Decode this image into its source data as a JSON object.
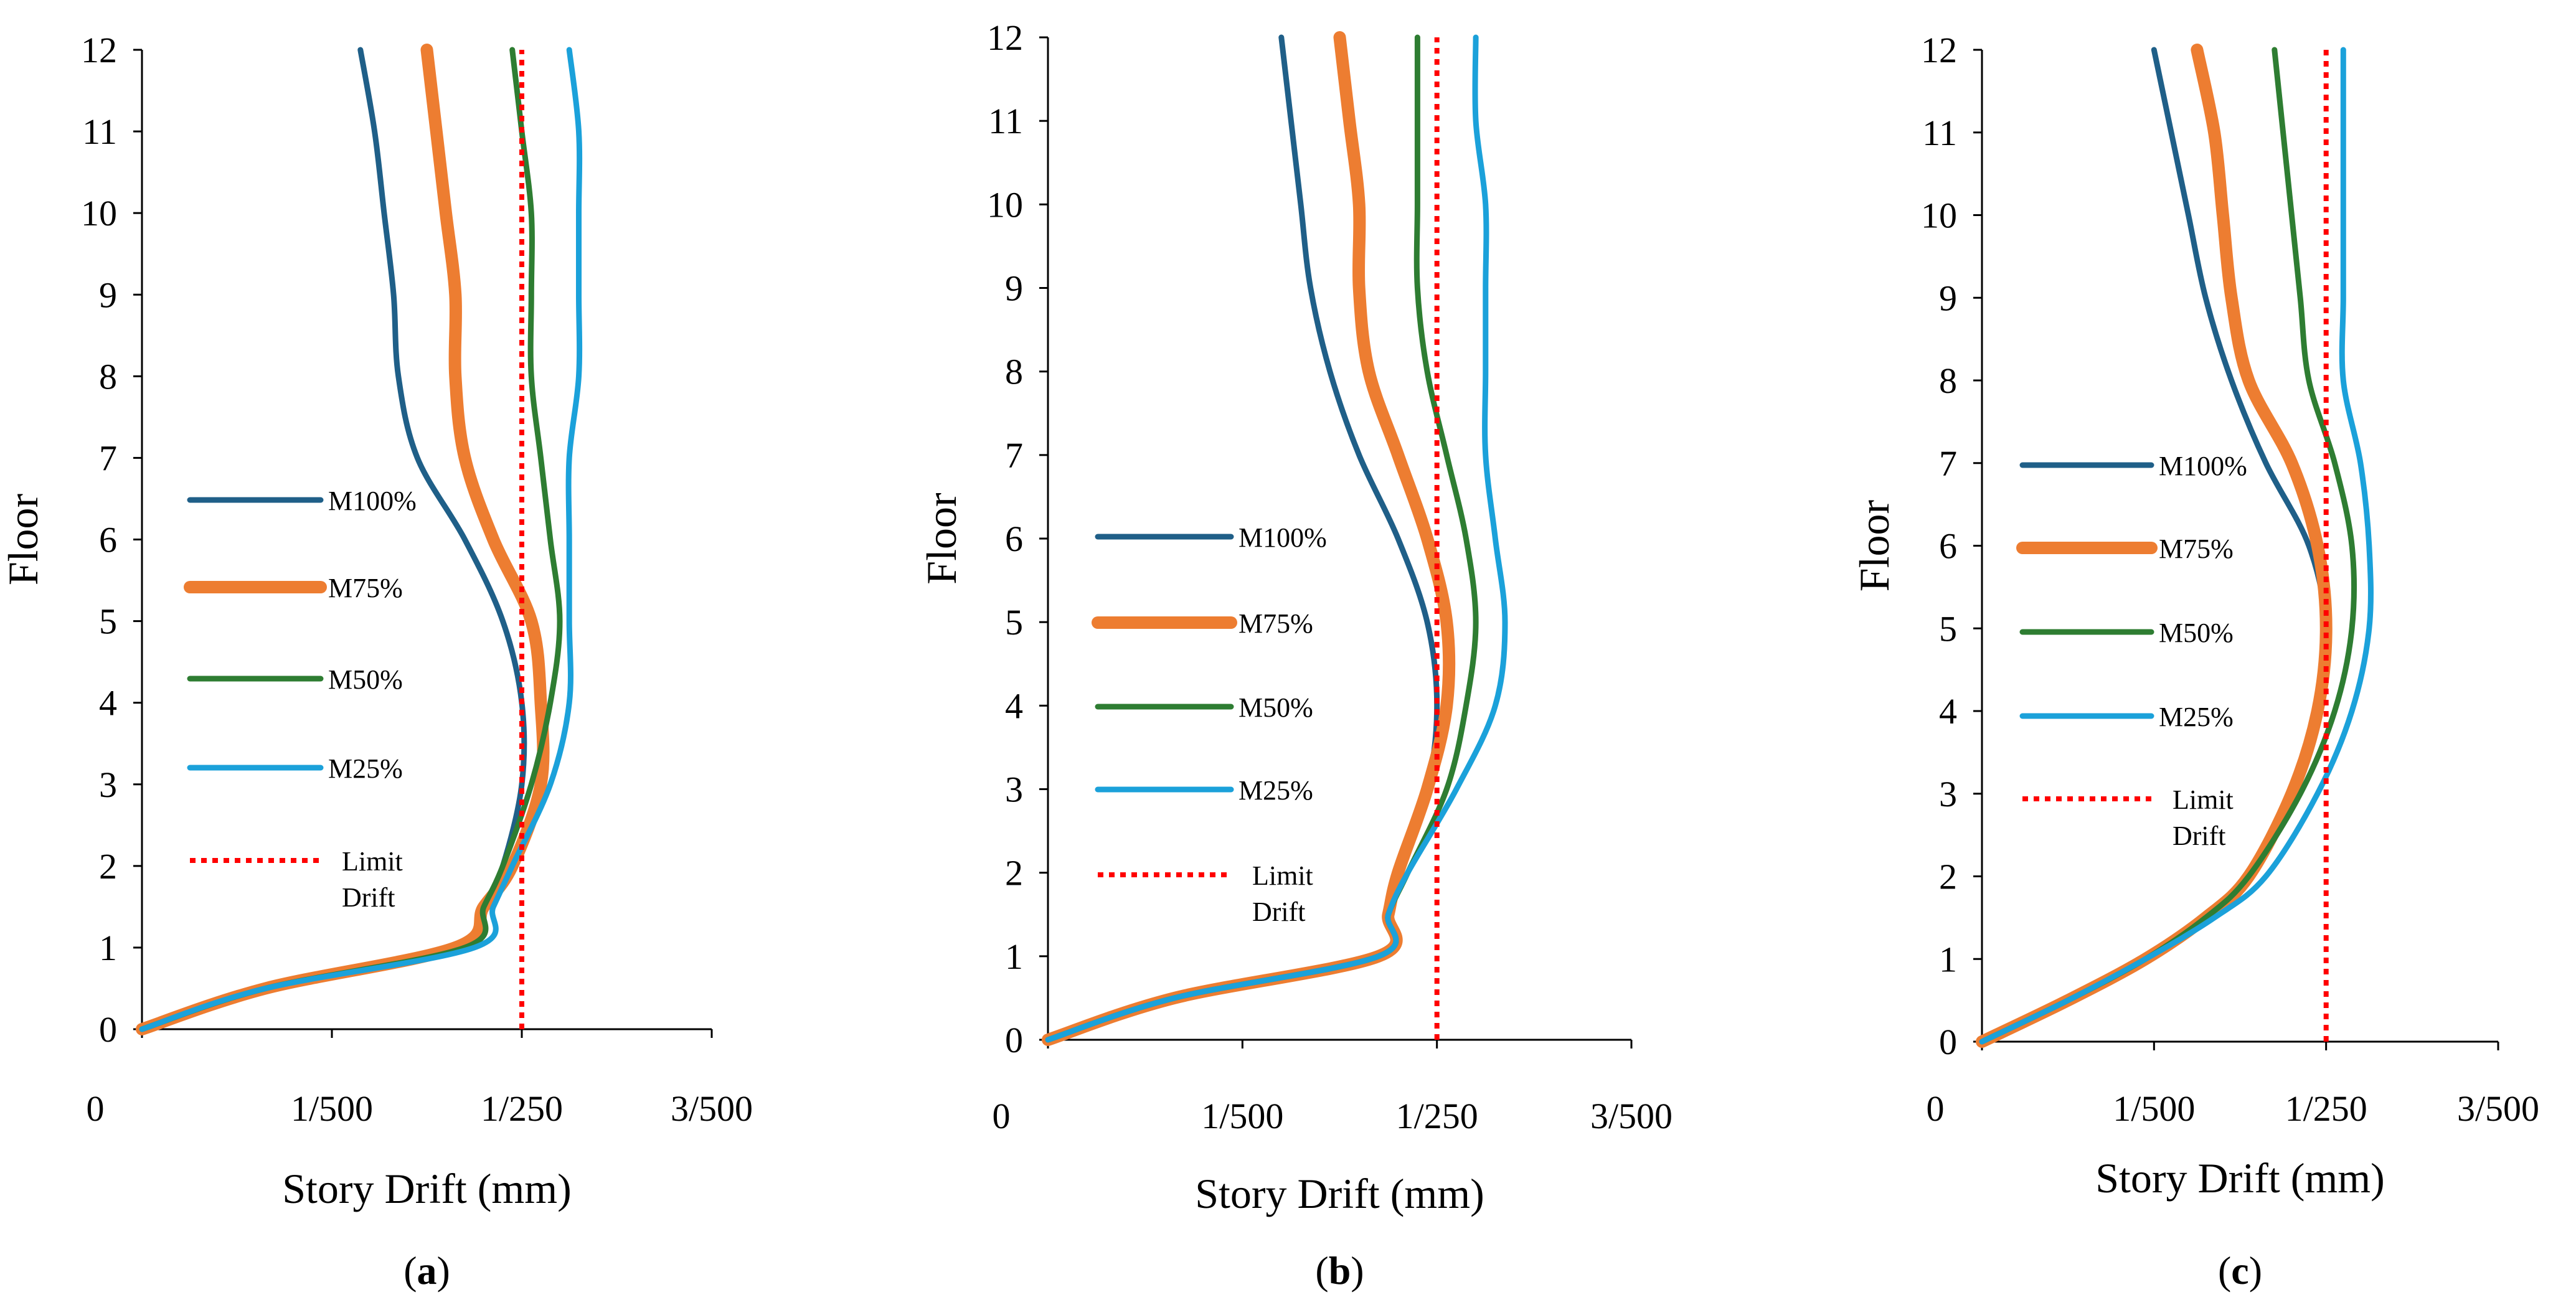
{
  "chart_data": [
    {
      "type": "line",
      "panel_label": "a",
      "xlabel": "Story Drift (mm)",
      "ylabel": "Floor",
      "xlim": [
        0,
        0.006
      ],
      "ylim": [
        0,
        12
      ],
      "x_ticks": [
        0,
        0.002,
        0.004,
        0.006
      ],
      "x_tick_labels": [
        "0",
        "1/500",
        "1/250",
        "3/500"
      ],
      "y_ticks": [
        0,
        1,
        2,
        3,
        4,
        5,
        6,
        7,
        8,
        9,
        10,
        11,
        12
      ],
      "y_tick_labels": [
        "0",
        "1",
        "2",
        "3",
        "4",
        "5",
        "6",
        "7",
        "8",
        "9",
        "10",
        "11",
        "12"
      ],
      "legend_position": "left-middle",
      "series": [
        {
          "name": "M100%",
          "label": "M100%",
          "color": "#1F5F88",
          "width": 9,
          "dash": "solid",
          "x": [
            0,
            0.0013,
            0.0033,
            0.0036,
            0.0038,
            0.004,
            0.004,
            0.0038,
            0.0034,
            0.0029,
            0.0027,
            0.00265,
            0.00255,
            0.00245,
            0.0023
          ],
          "y": [
            0,
            0.5,
            1,
            1.5,
            2,
            3,
            4,
            5,
            6,
            7,
            8,
            9,
            10,
            11,
            12
          ]
        },
        {
          "name": "M75%",
          "label": "M75%",
          "color": "#ED7D31",
          "width": 20,
          "dash": "solid",
          "x": [
            0,
            0.0013,
            0.0033,
            0.0036,
            0.0039,
            0.0042,
            0.0042,
            0.0041,
            0.0037,
            0.0034,
            0.0033,
            0.0033,
            0.0032,
            0.0031,
            0.003
          ],
          "y": [
            0,
            0.5,
            1,
            1.5,
            2,
            3,
            4,
            5,
            6,
            7,
            8,
            9,
            10,
            11,
            12
          ]
        },
        {
          "name": "M50%",
          "label": "M50%",
          "color": "#2E7D32",
          "width": 9,
          "dash": "solid",
          "x": [
            0,
            0.0013,
            0.0034,
            0.0036,
            0.0038,
            0.0041,
            0.0043,
            0.0044,
            0.0043,
            0.0042,
            0.0041,
            0.0041,
            0.0041,
            0.004,
            0.0039
          ],
          "y": [
            0,
            0.5,
            1,
            1.5,
            2,
            3,
            4,
            5,
            6,
            7,
            8,
            9,
            10,
            11,
            12
          ]
        },
        {
          "name": "M25%",
          "label": "M25%",
          "color": "#1BA1DA",
          "width": 9,
          "dash": "solid",
          "x": [
            0,
            0.0013,
            0.0035,
            0.0037,
            0.0039,
            0.0043,
            0.0045,
            0.0045,
            0.0045,
            0.0045,
            0.0046,
            0.0046,
            0.0046,
            0.0046,
            0.0045
          ],
          "y": [
            0,
            0.5,
            1,
            1.5,
            2,
            3,
            4,
            5,
            6,
            7,
            8,
            9,
            10,
            11,
            12
          ]
        },
        {
          "name": "Limit Drift",
          "label": [
            "Limit",
            "Drift"
          ],
          "color": "#FF0000",
          "width": 8,
          "dash": "dotted",
          "x": [
            0.004,
            0.004
          ],
          "y": [
            0,
            12
          ]
        }
      ]
    },
    {
      "type": "line",
      "panel_label": "b",
      "xlabel": "Story Drift (mm)",
      "ylabel": "Floor",
      "xlim": [
        0,
        0.006
      ],
      "ylim": [
        0,
        12
      ],
      "x_ticks": [
        0,
        0.002,
        0.004,
        0.006
      ],
      "x_tick_labels": [
        "0",
        "1/500",
        "1/250",
        "3/500"
      ],
      "y_ticks": [
        0,
        1,
        2,
        3,
        4,
        5,
        6,
        7,
        8,
        9,
        10,
        11,
        12
      ],
      "y_tick_labels": [
        "0",
        "1",
        "2",
        "3",
        "4",
        "5",
        "6",
        "7",
        "8",
        "9",
        "10",
        "11",
        "12"
      ],
      "legend_position": "left-middle",
      "series": [
        {
          "name": "M100%",
          "label": "M100%",
          "color": "#1F5F88",
          "width": 9,
          "dash": "solid",
          "x": [
            0,
            0.0013,
            0.0034,
            0.0035,
            0.0036,
            0.0039,
            0.004,
            0.0039,
            0.0036,
            0.0032,
            0.0029,
            0.0027,
            0.0026,
            0.0025,
            0.0024
          ],
          "y": [
            0,
            0.5,
            1,
            1.5,
            2,
            3,
            4,
            5,
            6,
            7,
            8,
            9,
            10,
            11,
            12
          ]
        },
        {
          "name": "M75%",
          "label": "M75%",
          "color": "#ED7D31",
          "width": 20,
          "dash": "solid",
          "x": [
            0,
            0.0013,
            0.0034,
            0.0035,
            0.0036,
            0.0039,
            0.0041,
            0.0041,
            0.0039,
            0.0036,
            0.0033,
            0.0032,
            0.0032,
            0.0031,
            0.003
          ],
          "y": [
            0,
            0.5,
            1,
            1.5,
            2,
            3,
            4,
            5,
            6,
            7,
            8,
            9,
            10,
            11,
            12
          ]
        },
        {
          "name": "M50%",
          "label": "M50%",
          "color": "#2E7D32",
          "width": 9,
          "dash": "solid",
          "x": [
            0,
            0.0013,
            0.0034,
            0.0035,
            0.0037,
            0.0041,
            0.0043,
            0.0044,
            0.0043,
            0.0041,
            0.0039,
            0.0038,
            0.0038,
            0.0038,
            0.0038
          ],
          "y": [
            0,
            0.5,
            1,
            1.5,
            2,
            3,
            4,
            5,
            6,
            7,
            8,
            9,
            10,
            11,
            12
          ]
        },
        {
          "name": "M25%",
          "label": "M25%",
          "color": "#1BA1DA",
          "width": 9,
          "dash": "solid",
          "x": [
            0,
            0.0013,
            0.0034,
            0.0035,
            0.0037,
            0.0042,
            0.0046,
            0.0047,
            0.0046,
            0.0045,
            0.0045,
            0.0045,
            0.0045,
            0.0044,
            0.0044
          ],
          "y": [
            0,
            0.5,
            1,
            1.5,
            2,
            3,
            4,
            5,
            6,
            7,
            8,
            9,
            10,
            11,
            12
          ]
        },
        {
          "name": "Limit Drift",
          "label": [
            "Limit",
            "Drift"
          ],
          "color": "#FF0000",
          "width": 8,
          "dash": "dotted",
          "x": [
            0.004,
            0.004
          ],
          "y": [
            0,
            12
          ]
        }
      ]
    },
    {
      "type": "line",
      "panel_label": "c",
      "xlabel": "Story Drift (mm)",
      "ylabel": "Floor",
      "xlim": [
        0,
        0.006
      ],
      "ylim": [
        0,
        12
      ],
      "x_ticks": [
        0,
        0.002,
        0.004,
        0.006
      ],
      "x_tick_labels": [
        "0",
        "1/500",
        "1/250",
        "3/500"
      ],
      "y_ticks": [
        0,
        1,
        2,
        3,
        4,
        5,
        6,
        7,
        8,
        9,
        10,
        11,
        12
      ],
      "y_tick_labels": [
        "0",
        "1",
        "2",
        "3",
        "4",
        "5",
        "6",
        "7",
        "8",
        "9",
        "10",
        "11",
        "12"
      ],
      "legend_position": "left-middle",
      "series": [
        {
          "name": "M100%",
          "label": "M100%",
          "color": "#1F5F88",
          "width": 9,
          "dash": "solid",
          "x": [
            0,
            0.001,
            0.0019,
            0.0026,
            0.0031,
            0.0036,
            0.0039,
            0.004,
            0.0038,
            0.0033,
            0.0029,
            0.0026,
            0.0024,
            0.0022,
            0.002
          ],
          "y": [
            0,
            0.5,
            1,
            1.5,
            2,
            3,
            4,
            5,
            6,
            7,
            8,
            9,
            10,
            11,
            12
          ]
        },
        {
          "name": "M75%",
          "label": "M75%",
          "color": "#ED7D31",
          "width": 20,
          "dash": "solid",
          "x": [
            0,
            0.001,
            0.0019,
            0.0026,
            0.0031,
            0.0036,
            0.0039,
            0.004,
            0.0039,
            0.0036,
            0.0031,
            0.0029,
            0.0028,
            0.0027,
            0.0025
          ],
          "y": [
            0,
            0.5,
            1,
            1.5,
            2,
            3,
            4,
            5,
            6,
            7,
            8,
            9,
            10,
            11,
            12
          ]
        },
        {
          "name": "M50%",
          "label": "M50%",
          "color": "#2E7D32",
          "width": 9,
          "dash": "solid",
          "x": [
            0,
            0.001,
            0.0019,
            0.0026,
            0.0031,
            0.0037,
            0.0041,
            0.0043,
            0.0043,
            0.0041,
            0.0038,
            0.0037,
            0.0036,
            0.0035,
            0.0034
          ],
          "y": [
            0,
            0.5,
            1,
            1.5,
            2,
            3,
            4,
            5,
            6,
            7,
            8,
            9,
            10,
            11,
            12
          ]
        },
        {
          "name": "M25%",
          "label": "M25%",
          "color": "#1BA1DA",
          "width": 9,
          "dash": "solid",
          "x": [
            0,
            0.001,
            0.0019,
            0.0027,
            0.0033,
            0.0039,
            0.0043,
            0.0045,
            0.0045,
            0.0044,
            0.0042,
            0.0042,
            0.0042,
            0.0042,
            0.0042
          ],
          "y": [
            0,
            0.5,
            1,
            1.5,
            2,
            3,
            4,
            5,
            6,
            7,
            8,
            9,
            10,
            11,
            12
          ]
        },
        {
          "name": "Limit Drift",
          "label": [
            "Limit",
            "Drift"
          ],
          "color": "#FF0000",
          "width": 8,
          "dash": "dotted",
          "x": [
            0.004,
            0.004
          ],
          "y": [
            0,
            12
          ]
        }
      ]
    }
  ]
}
